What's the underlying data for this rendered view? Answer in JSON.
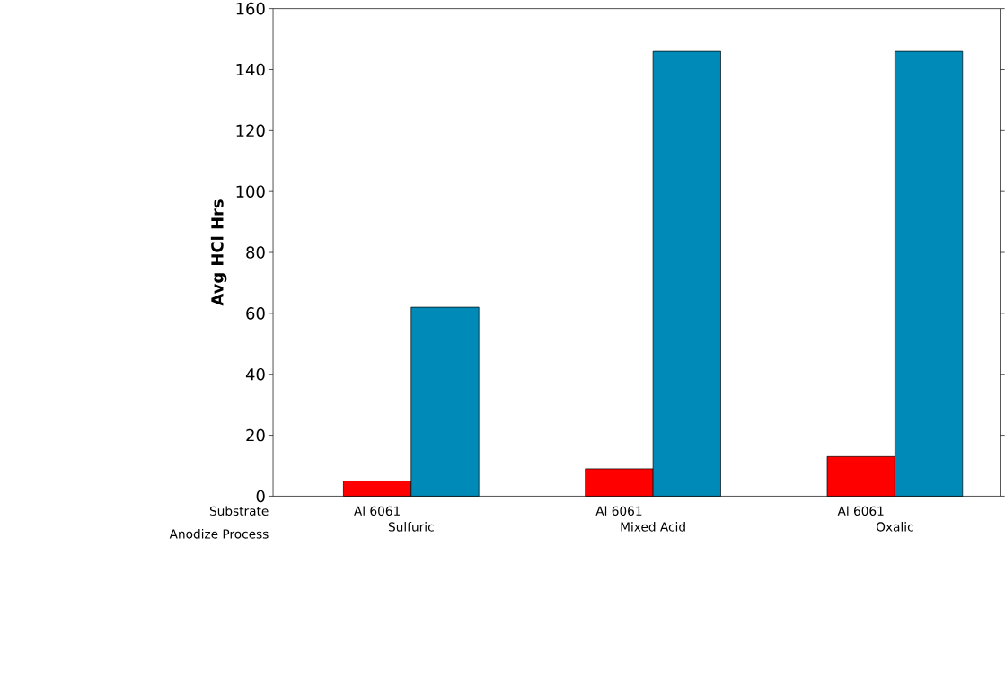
{
  "chart_data": {
    "type": "bar",
    "ylabel": "Avg HCl Hrs",
    "categories": [
      "Sulfuric",
      "Mixed Acid",
      "Oxalic"
    ],
    "series": [
      {
        "name": "Al 6061",
        "color": "#ff0000",
        "values": [
          5,
          9,
          13
        ]
      },
      {
        "color": "#008ab8",
        "values": [
          62,
          146,
          146
        ]
      }
    ],
    "ylim": [
      0,
      160
    ],
    "yticks": [
      0,
      20,
      40,
      60,
      80,
      100,
      120,
      140,
      160
    ],
    "annotations": [
      "Substrate",
      "Anodize Process"
    ]
  }
}
